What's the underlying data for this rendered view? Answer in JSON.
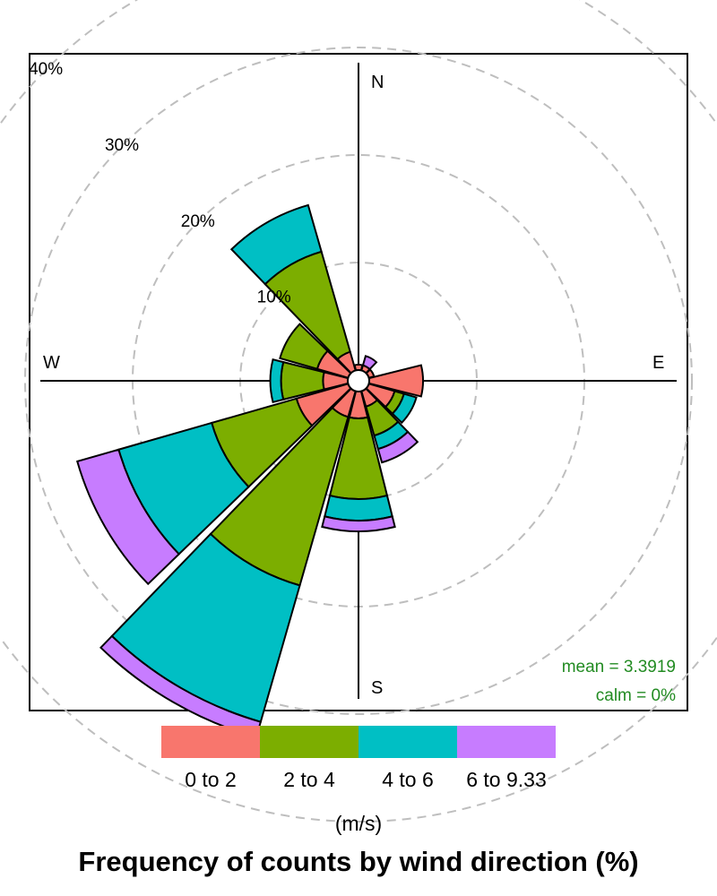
{
  "chart_data": {
    "type": "windrose",
    "title": "Frequency of counts by wind direction (%)",
    "units_label": "(m/s)",
    "compass": [
      "N",
      "E",
      "S",
      "W"
    ],
    "radial_ticks": [
      10,
      20,
      30,
      40
    ],
    "radial_tick_labels": [
      "10%",
      "20%",
      "30%",
      "40%"
    ],
    "rmax": 40,
    "grid": "dashed-circles",
    "series": [
      {
        "name": "0 to 2",
        "color": "#F8766D"
      },
      {
        "name": "2 to 4",
        "color": "#7CAE00"
      },
      {
        "name": "4 to 6",
        "color": "#00BFC4"
      },
      {
        "name": "6 to 9.33",
        "color": "#C77CFF"
      }
    ],
    "directions": [
      0,
      30,
      60,
      90,
      120,
      150,
      180,
      210,
      240,
      270,
      300,
      330
    ],
    "cumulative": [
      [
        0.5,
        0.5,
        0.5,
        0.5
      ],
      [
        0.5,
        0.5,
        0.5,
        1.4
      ],
      [
        0.5,
        0.5,
        0.5,
        0.5
      ],
      [
        5.0,
        5.0,
        5.0,
        5.0
      ],
      [
        2.5,
        3.4,
        4.6,
        4.6
      ],
      [
        1.5,
        4.3,
        5.6,
        6.9
      ],
      [
        2.5,
        10.0,
        12.0,
        13.0
      ],
      [
        2.5,
        18.8,
        32.0,
        33.5
      ],
      [
        5.0,
        13.2,
        22.2,
        26.2
      ],
      [
        2.3,
        6.2,
        7.2,
        7.2
      ],
      [
        3.0,
        6.6,
        6.6,
        6.6
      ],
      [
        1.8,
        11.5,
        16.0,
        16.0
      ]
    ],
    "stats": {
      "mean": "mean = 3.3919",
      "calm": "calm = 0%"
    }
  }
}
